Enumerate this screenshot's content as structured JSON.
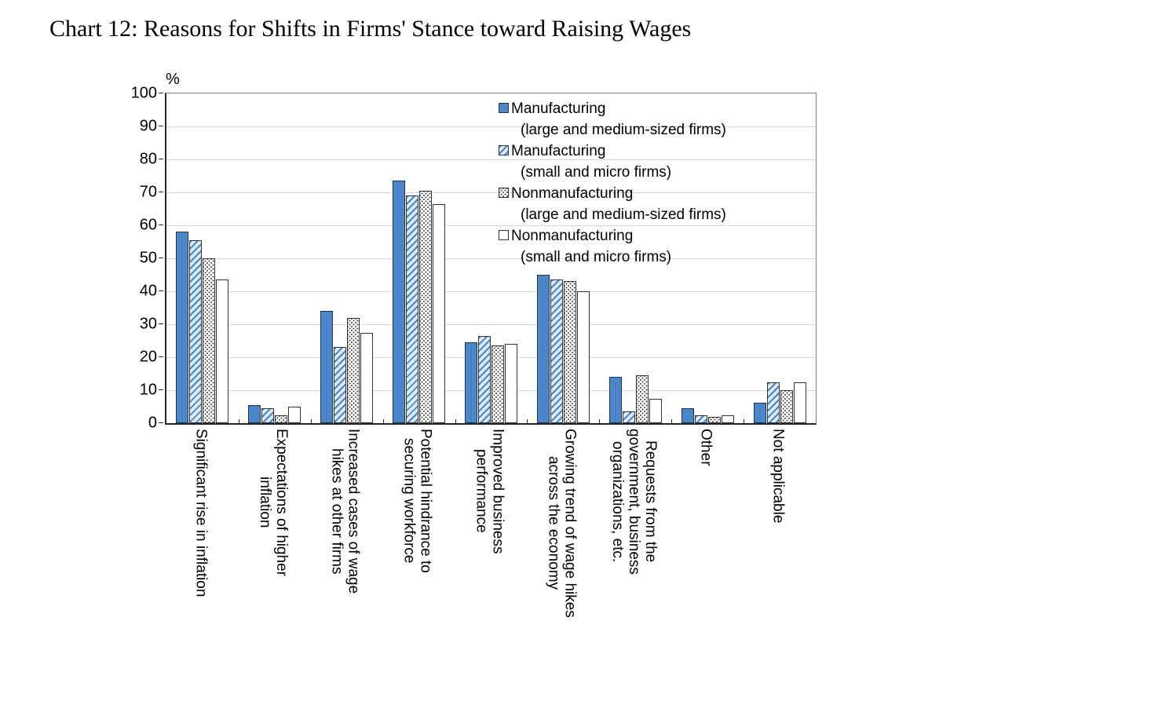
{
  "chart_data": {
    "type": "bar",
    "title": "Chart 12: Reasons for Shifts in Firms' Stance toward Raising Wages",
    "ylabel": "%",
    "ylim": [
      0,
      100
    ],
    "ytick_step": 10,
    "yticks": [
      100,
      90,
      80,
      70,
      60,
      50,
      40,
      30,
      20,
      10,
      0
    ],
    "grid": true,
    "legend_position": "top-right-inside",
    "categories": [
      "Significant rise in inflation",
      "Expectations of higher\ninflation",
      "Increased cases of wage\nhikes at other firms",
      "Potential hindrance to\nsecuring workforce",
      "Improved business\nperformance",
      "Growing trend of wage hikes\nacross the economy",
      "Requests from the\ngovernment, business\norganizations, etc.",
      "Other",
      "Not applicable"
    ],
    "series": [
      {
        "name": "Manufacturing",
        "subname": "(large and medium-sized firms)",
        "pattern": "solid",
        "values": [
          58,
          5.5,
          34,
          73.5,
          24.5,
          45,
          14,
          4.5,
          6.3
        ]
      },
      {
        "name": "Manufacturing",
        "subname": "(small and micro firms)",
        "pattern": "hatch",
        "values": [
          55.5,
          4.5,
          23,
          69,
          26.5,
          43.5,
          3.5,
          2.5,
          12.5
        ]
      },
      {
        "name": "Nonmanufacturing",
        "subname": "(large and medium-sized firms)",
        "pattern": "dots",
        "values": [
          50,
          2.5,
          32,
          70.5,
          23.5,
          43,
          14.5,
          2,
          10
        ]
      },
      {
        "name": "Nonmanufacturing",
        "subname": "(small and micro firms)",
        "pattern": "white",
        "values": [
          43.5,
          5,
          27.5,
          66.5,
          24,
          40,
          7.5,
          2.5,
          12.5
        ]
      }
    ],
    "colors": {
      "bar_blue": "#4a86c8",
      "hatch_background": "#ddebf7",
      "bar_border": "#333333",
      "gridline": "#d9d9d9",
      "plot_frame": "#7f7f7f",
      "axis": "#262626"
    }
  }
}
